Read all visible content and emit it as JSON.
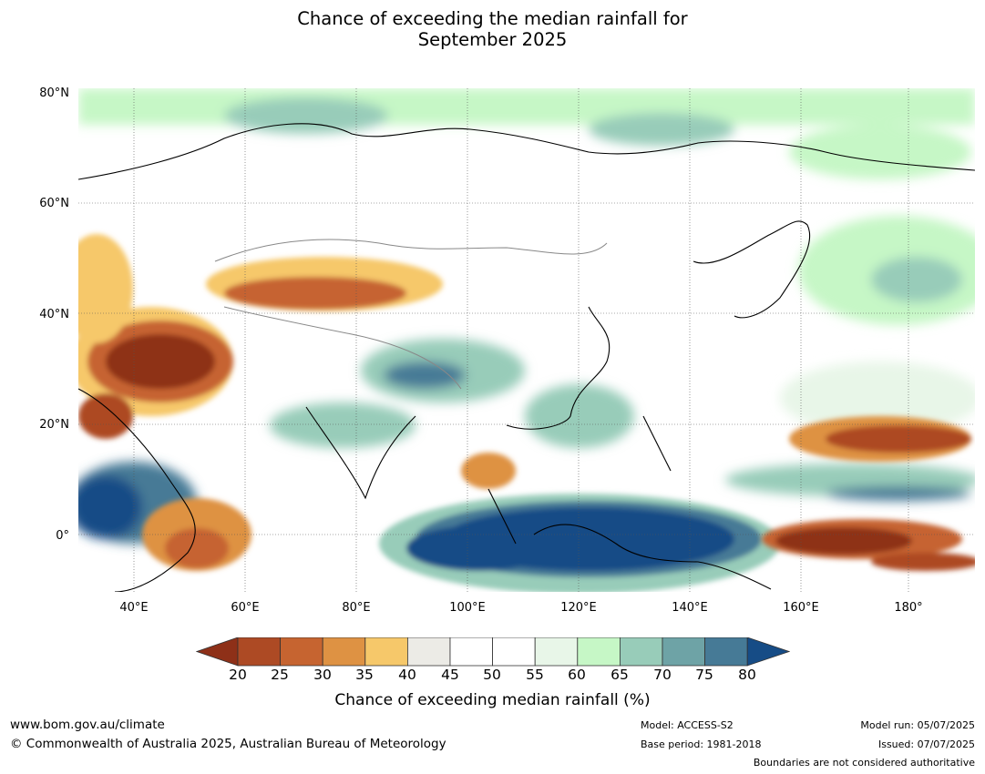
{
  "title": {
    "line1": "Chance of exceeding the median rainfall for",
    "line2": "September 2025"
  },
  "map": {
    "lat_labels": [
      "80°N",
      "60°N",
      "40°N",
      "20°N",
      "0°"
    ],
    "lon_labels": [
      "40°E",
      "60°E",
      "80°E",
      "100°E",
      "120°E",
      "140°E",
      "160°E",
      "180°"
    ],
    "extent": {
      "lon": [
        30,
        191
      ],
      "lat": [
        -10,
        80
      ]
    }
  },
  "colorbar": {
    "ticks": [
      "20",
      "25",
      "30",
      "35",
      "40",
      "45",
      "50",
      "55",
      "60",
      "65",
      "70",
      "75",
      "80"
    ],
    "label": "Chance of exceeding median rainfall (%)",
    "colors": [
      "#8e3018",
      "#ad4a24",
      "#c66430",
      "#de9243",
      "#f6c86a",
      "#ecebe6",
      "#ffffff",
      "#ffffff",
      "#e8f6e8",
      "#c6f7c6",
      "#98ccb9",
      "#6ea3a6",
      "#467a96",
      "#164c86"
    ]
  },
  "footer": {
    "website": "www.bom.gov.au/climate",
    "copyright": "© Commonwealth of Australia 2025, Australian Bureau of Meteorology",
    "model": "Model: ACCESS-S2",
    "base_period": "Base period: 1981-2018",
    "model_run": "Model run: 05/07/2025",
    "issued": "Issued: 07/07/2025",
    "disclaimer": "Boundaries are not considered authoritative"
  }
}
